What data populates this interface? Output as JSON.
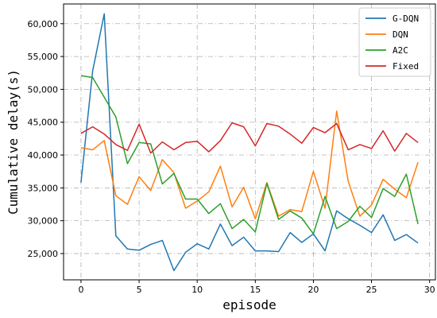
{
  "chart_data": {
    "type": "line",
    "xlabel": "episode",
    "ylabel": "Cumulative delay(s)",
    "xlim": [
      -1.5,
      30.5
    ],
    "ylim": [
      21000,
      63000
    ],
    "xticks": [
      0,
      5,
      10,
      15,
      20,
      25,
      30
    ],
    "yticks": [
      25000,
      30000,
      35000,
      40000,
      45000,
      50000,
      55000,
      60000
    ],
    "ytick_labels": [
      "25,000",
      "30,000",
      "35,000",
      "40,000",
      "45,000",
      "50,000",
      "55,000",
      "60,000"
    ],
    "grid": true,
    "legend_position": "top-right",
    "x": [
      0,
      1,
      2,
      3,
      4,
      5,
      6,
      7,
      8,
      9,
      10,
      11,
      12,
      13,
      14,
      15,
      16,
      17,
      18,
      19,
      20,
      21,
      22,
      23,
      24,
      25,
      26,
      27,
      28,
      29
    ],
    "series": [
      {
        "name": "G-DQN",
        "color": "#1f77b4",
        "values": [
          35800,
          52800,
          61500,
          27700,
          25700,
          25500,
          26400,
          27000,
          22400,
          25200,
          26500,
          25700,
          29500,
          26200,
          27500,
          25400,
          25400,
          25300,
          28200,
          26700,
          28000,
          25400,
          31500,
          30300,
          29300,
          28200,
          30900,
          27000,
          27900,
          26600
        ]
      },
      {
        "name": "DQN",
        "color": "#ff7f0e",
        "values": [
          41100,
          40800,
          42200,
          33800,
          32500,
          36700,
          34600,
          39300,
          37300,
          31900,
          33000,
          34400,
          38300,
          32100,
          35100,
          30300,
          35800,
          30700,
          31700,
          31400,
          37500,
          31900,
          46700,
          36000,
          30700,
          32400,
          36300,
          34800,
          33500,
          38900
        ]
      },
      {
        "name": "A2C",
        "color": "#2ca02c",
        "values": [
          52100,
          51800,
          48800,
          45800,
          38700,
          41900,
          41700,
          35600,
          37200,
          33300,
          33300,
          31100,
          32600,
          28800,
          30200,
          28300,
          35700,
          30200,
          31500,
          30400,
          28000,
          33700,
          28800,
          29900,
          32200,
          30500,
          34900,
          33700,
          37100,
          29500
        ]
      },
      {
        "name": "Fixed",
        "color": "#d62728",
        "values": [
          43300,
          44300,
          43200,
          41600,
          40700,
          44700,
          40300,
          42000,
          40800,
          41900,
          42100,
          40500,
          42200,
          44900,
          44300,
          41400,
          44800,
          44400,
          43200,
          41800,
          44200,
          43400,
          44800,
          40800,
          41600,
          41000,
          43700,
          40600,
          43300,
          41900
        ]
      }
    ]
  }
}
